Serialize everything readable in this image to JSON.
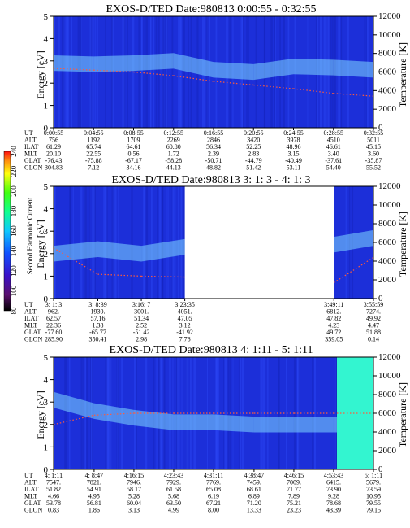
{
  "colorbar": {
    "label": "Second Harmonic Current",
    "ticks": [
      "80",
      "100",
      "120",
      "140",
      "160",
      "180",
      "200",
      "220",
      "240"
    ]
  },
  "chart_data": [
    {
      "type": "heatmap",
      "title": "EXOS-D/TED   Date:980813  0:00:55 - 0:32:55",
      "ylabel": "Energy [eV]",
      "y2label": "Temperature [K]",
      "ylim": [
        0,
        5
      ],
      "y2lim": [
        0,
        12000
      ],
      "yticks": [
        "0",
        "1",
        "2",
        "3",
        "4",
        "5"
      ],
      "y2ticks": [
        "0",
        "2000",
        "4000",
        "6000",
        "8000",
        "10000",
        "12000"
      ],
      "ephemeris_labels": [
        "UT",
        "ALT",
        "ILAT",
        "MLT",
        "GLAT",
        "GLON"
      ],
      "ephemeris": [
        [
          "0:00:55",
          "756",
          "61.29",
          "20.10",
          "-76.43",
          "304.83"
        ],
        [
          "0:04:55",
          "1192",
          "65.74",
          "22.55",
          "-75.88",
          "7.12"
        ],
        [
          "0:08:55",
          "1709",
          "64.61",
          "0.56",
          "-67.17",
          "34.16"
        ],
        [
          "0:12:55",
          "2269",
          "60.80",
          "1.72",
          "-58.28",
          "44.13"
        ],
        [
          "0:16:55",
          "2846",
          "56.34",
          "2.39",
          "-50.71",
          "48.82"
        ],
        [
          "0:20:55",
          "3420",
          "52.25",
          "2.83",
          "-44.79",
          "51.42"
        ],
        [
          "0:24:55",
          "3978",
          "48.96",
          "3.15",
          "-40.49",
          "53.11"
        ],
        [
          "0:28:55",
          "4510",
          "46.61",
          "3.40",
          "-37.61",
          "54.40"
        ],
        [
          "0:32:55",
          "5011",
          "45.15",
          "3.60",
          "-35.87",
          "55.52"
        ]
      ],
      "bright_band": [
        2.9,
        2.85,
        2.9,
        3.0,
        2.6,
        2.5,
        2.75,
        2.7,
        2.6
      ],
      "temperature_K": [
        6400,
        6200,
        6000,
        5600,
        5000,
        4600,
        4200,
        3700,
        3400
      ]
    },
    {
      "type": "heatmap",
      "title": "EXOS-D/TED   Date:980813  3: 1: 3 - 4: 1: 3",
      "ylabel": "Energy [eV]",
      "y2label": "Temperature [K]",
      "ylim": [
        0,
        5
      ],
      "y2lim": [
        0,
        12000
      ],
      "yticks": [
        "0",
        "1",
        "2",
        "3",
        "4",
        "5"
      ],
      "y2ticks": [
        "0",
        "2000",
        "4000",
        "6000",
        "8000",
        "10000",
        "12000"
      ],
      "ephemeris_labels": [
        "UT",
        "ALT",
        "ILAT",
        "MLT",
        "GLAT",
        "GLON"
      ],
      "ephemeris": [
        [
          "3: 1: 3",
          "962.",
          "62.57",
          "22.36",
          "-77.60",
          "285.90"
        ],
        [
          "3: 8:39",
          "1930.",
          "57.16",
          "1.38",
          "-65.77",
          "350.41"
        ],
        [
          "3:16: 7",
          "3001.",
          "51.34",
          "2.52",
          "-51.42",
          "2.98"
        ],
        [
          "3:23:35",
          "4051.",
          "47.05",
          "3.12",
          "-41.92",
          "7.76"
        ],
        [
          "3:49:11",
          "6812.",
          "47.82",
          "4.23",
          "49.72",
          "359.05"
        ],
        [
          "3:55:59",
          "7274.",
          "49.92",
          "4.47",
          "51.88",
          "0.14"
        ]
      ],
      "data_gap": [
        "3:23:35",
        "3:49:11"
      ],
      "bright_band": [
        2.0,
        2.2,
        2.0,
        2.3,
        2.4,
        2.7
      ],
      "temperature_K": [
        5400,
        2600,
        2400,
        2300,
        1700,
        4400
      ]
    },
    {
      "type": "heatmap",
      "title": "EXOS-D/TED   Date:980813  4: 1:11 - 5: 1:11",
      "ylabel": "Energy [eV]",
      "y2label": "Temperature [K]",
      "ylim": [
        0,
        5
      ],
      "y2lim": [
        0,
        12000
      ],
      "yticks": [
        "0",
        "1",
        "2",
        "3",
        "4",
        "5"
      ],
      "y2ticks": [
        "0",
        "2000",
        "4000",
        "6000",
        "8000",
        "10000",
        "12000"
      ],
      "ephemeris_labels": [
        "UT",
        "ALT",
        "ILAT",
        "MLT",
        "GLAT",
        "GLON"
      ],
      "ephemeris": [
        [
          "4: 1:11",
          "7547.",
          "51.82",
          "4.66",
          "53.78",
          "0.83"
        ],
        [
          "4: 8:47",
          "7821.",
          "54.91",
          "4.95",
          "56.81",
          "1.86"
        ],
        [
          "4:16:15",
          "7946.",
          "58.17",
          "5.28",
          "60.04",
          "3.13"
        ],
        [
          "4:23:43",
          "7929.",
          "61.58",
          "5.68",
          "63.50",
          "4.99"
        ],
        [
          "4:31:11",
          "7769.",
          "65.08",
          "6.19",
          "67.21",
          "8.00"
        ],
        [
          "4:38:47",
          "7459.",
          "68.61",
          "6.89",
          "71.20",
          "13.33"
        ],
        [
          "4:46:15",
          "7009.",
          "71.77",
          "7.89",
          "75.21",
          "23.23"
        ],
        [
          "4:53:43",
          "6415.",
          "73.90",
          "9.28",
          "78.68",
          "43.39"
        ],
        [
          "5: 1:11",
          "5679.",
          "73.59",
          "10.95",
          "79.55",
          "79.15"
        ]
      ],
      "bright_band": [
        3.1,
        2.6,
        2.3,
        2.1,
        2.1,
        2.0,
        2.0,
        2.0,
        2.0
      ],
      "temperature_K": [
        4800,
        5800,
        6000,
        6000,
        6000,
        6000,
        6000,
        6000,
        6000
      ]
    }
  ]
}
